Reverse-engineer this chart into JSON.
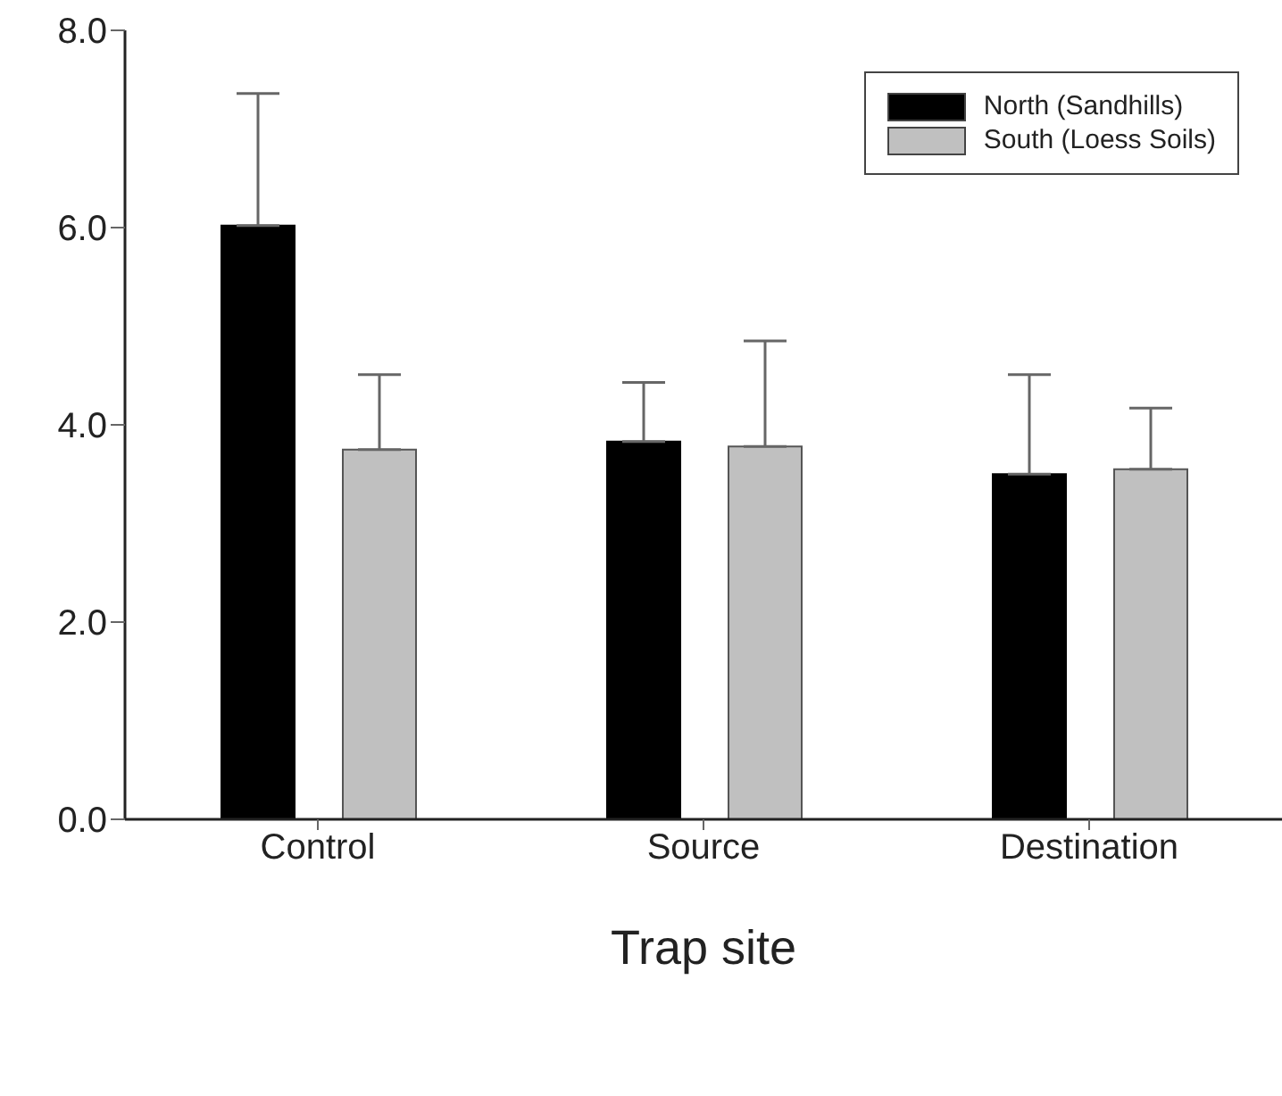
{
  "chart_data": {
    "type": "bar",
    "xlabel": "Trap site",
    "categories": [
      "Control",
      "Source",
      "Destination"
    ],
    "series": [
      {
        "name": "North (Sandhills)",
        "color": "#000000",
        "values": [
          6.02,
          3.83,
          3.5
        ],
        "errors": [
          [
            6.02,
            7.36
          ],
          [
            3.83,
            4.43
          ],
          [
            3.5,
            4.51
          ]
        ]
      },
      {
        "name": "South (Loess Soils)",
        "color": "#c0c0c0",
        "values": [
          3.75,
          3.78,
          3.55
        ],
        "errors": [
          [
            3.75,
            4.51
          ],
          [
            3.78,
            4.85
          ],
          [
            3.55,
            4.17
          ]
        ]
      }
    ],
    "ylim": [
      0,
      8
    ],
    "yticks": [
      {
        "value": 0,
        "label": "0.0"
      },
      {
        "value": 2,
        "label": "2.0"
      },
      {
        "value": 4,
        "label": "4.0"
      },
      {
        "value": 6,
        "label": "6.0"
      },
      {
        "value": 8,
        "label": "8.0"
      }
    ],
    "legend": "top right",
    "grid": false
  }
}
